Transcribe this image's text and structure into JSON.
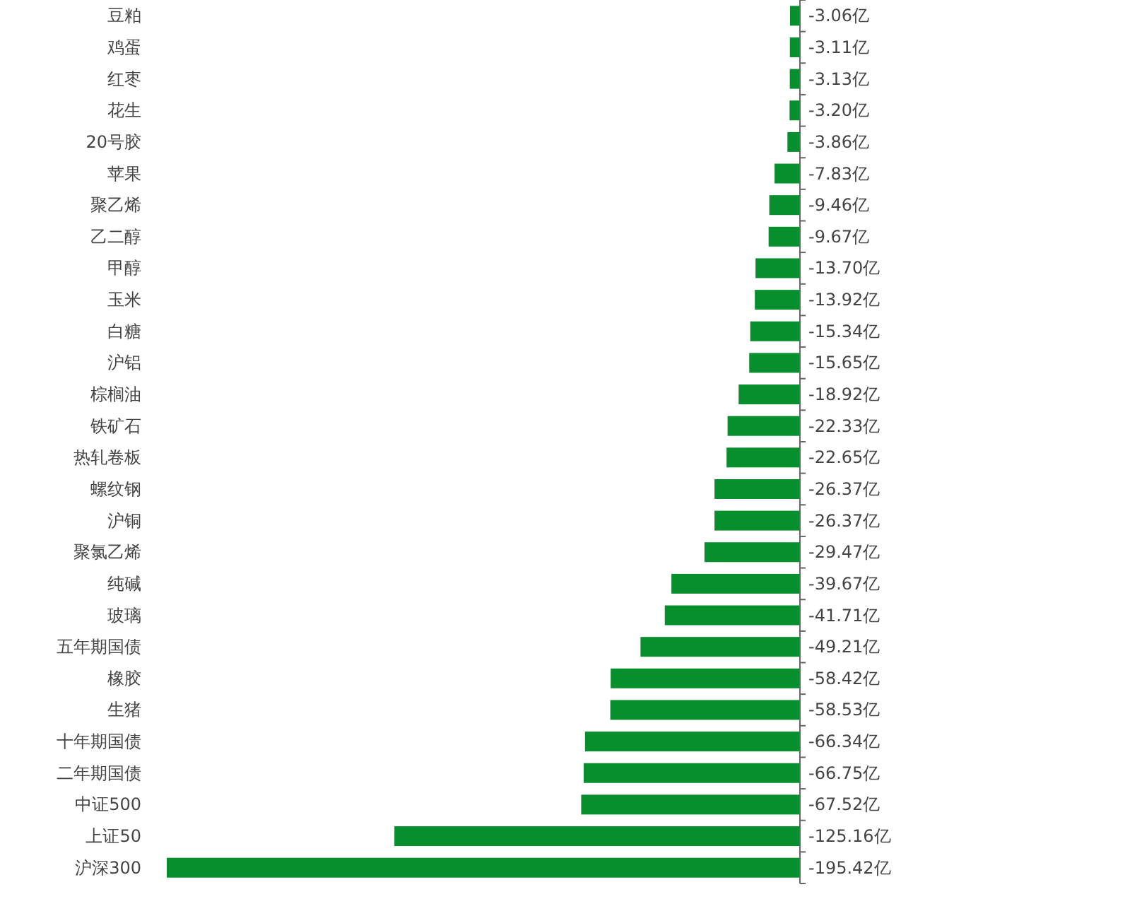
{
  "chart_data": {
    "type": "bar",
    "orientation": "horizontal",
    "color": "#078f2e",
    "categories": [
      "豆粕",
      "鸡蛋",
      "红枣",
      "花生",
      "20号胶",
      "苹果",
      "聚乙烯",
      "乙二醇",
      "甲醇",
      "玉米",
      "白糖",
      "沪铝",
      "棕榈油",
      "铁矿石",
      "热轧卷板",
      "螺纹钢",
      "沪铜",
      "聚氯乙烯",
      "纯碱",
      "玻璃",
      "五年期国债",
      "橡胶",
      "生猪",
      "十年期国债",
      "二年期国债",
      "中证500",
      "上证50",
      "沪深300"
    ],
    "values": [
      -3.06,
      -3.11,
      -3.13,
      -3.2,
      -3.86,
      -7.83,
      -9.46,
      -9.67,
      -13.7,
      -13.92,
      -15.34,
      -15.65,
      -18.92,
      -22.33,
      -22.65,
      -26.37,
      -26.37,
      -29.47,
      -39.67,
      -41.71,
      -49.21,
      -58.42,
      -58.53,
      -66.34,
      -66.75,
      -67.52,
      -125.16,
      -195.42
    ],
    "value_labels": [
      "-3.06亿",
      "-3.11亿",
      "-3.13亿",
      "-3.20亿",
      "-3.86亿",
      "-7.83亿",
      "-9.46亿",
      "-9.67亿",
      "-13.70亿",
      "-13.92亿",
      "-15.34亿",
      "-15.65亿",
      "-18.92亿",
      "-22.33亿",
      "-22.65亿",
      "-26.37亿",
      "-26.37亿",
      "-29.47亿",
      "-39.67亿",
      "-41.71亿",
      "-49.21亿",
      "-58.42亿",
      "-58.53亿",
      "-66.34亿",
      "-66.75亿",
      "-67.52亿",
      "-125.16亿",
      "-195.42亿"
    ]
  }
}
